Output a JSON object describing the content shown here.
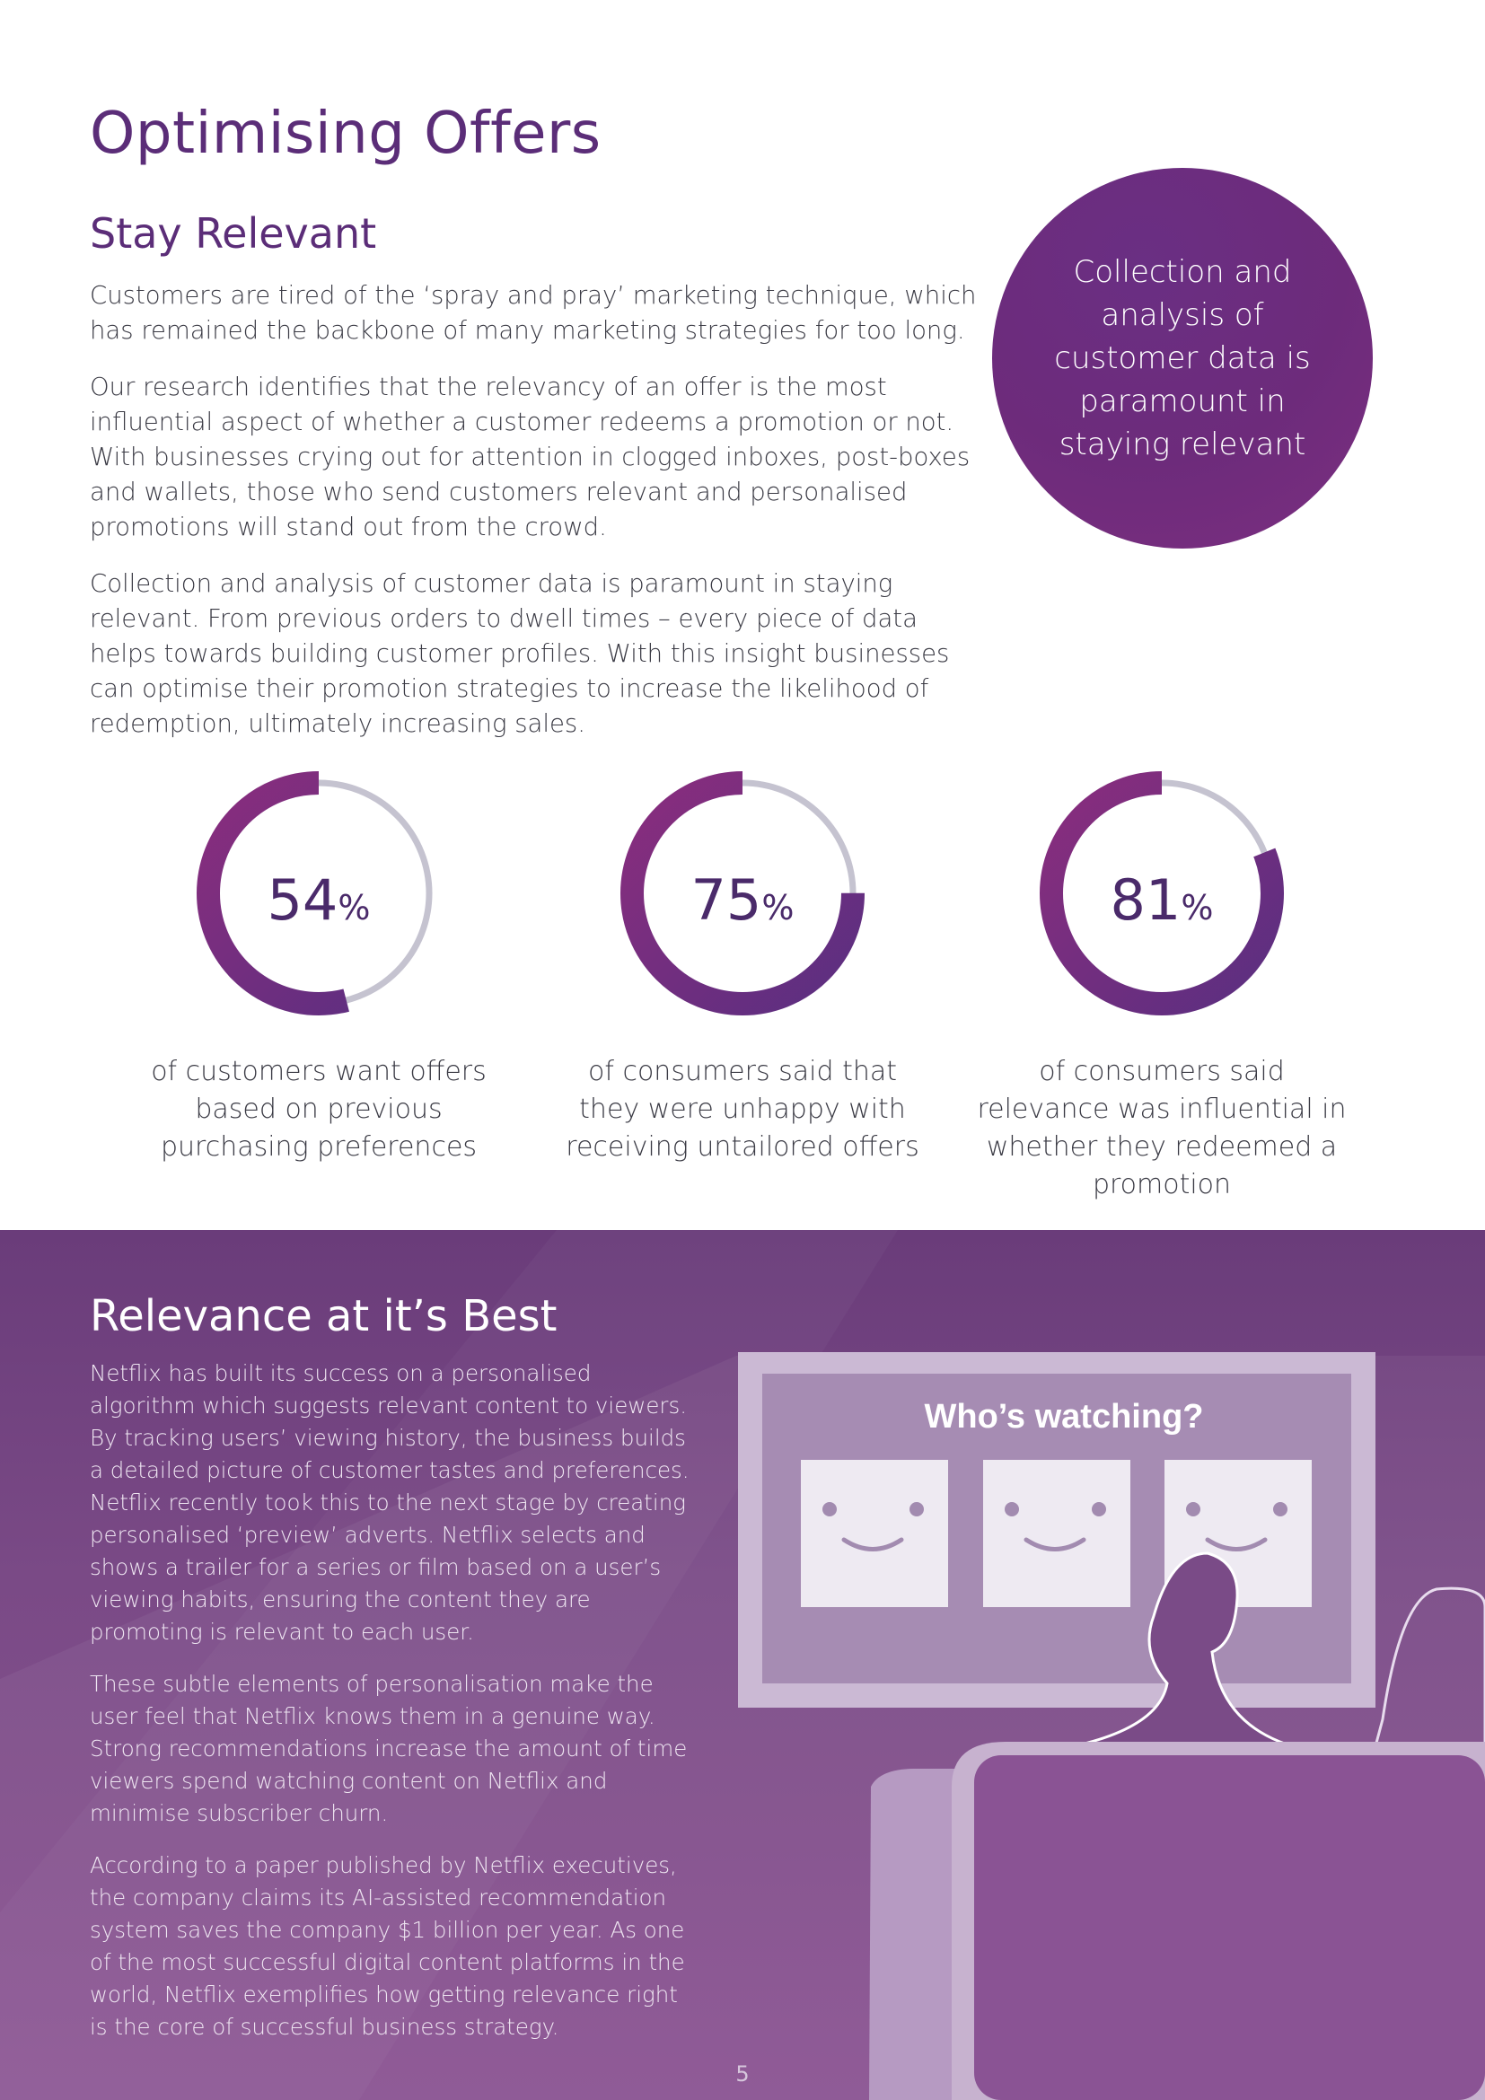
{
  "page": {
    "title": "Optimising Offers",
    "subtitle": "Stay Relevant",
    "number": "5"
  },
  "intro": {
    "paragraphs": [
      "Customers are tired of the ‘spray and pray’ marketing technique, which has remained the backbone of many marketing strategies for too long.",
      "Our research identifies that the relevancy of an offer is the most influential aspect of whether a customer redeems a promotion or not. With businesses crying out for attention in clogged inboxes, post-boxes and wallets, those who send customers relevant and personalised promotions will stand out from the crowd.",
      "Collection and analysis of customer data is paramount in staying relevant. From previous orders to dwell times – every piece of data helps towards building customer profiles. With this insight businesses can optimise their promotion strategies to increase the likelihood of redemption, ultimately increasing sales."
    ]
  },
  "callout": {
    "text": "Collection and analysis of customer data is paramount in staying relevant"
  },
  "stats": [
    {
      "value": "54",
      "unit": "%",
      "fraction": 0.54,
      "caption": "of customers want offers based on previous purchasing preferences"
    },
    {
      "value": "75",
      "unit": "%",
      "fraction": 0.75,
      "caption": "of consumers said that they were unhappy with receiving untailored offers"
    },
    {
      "value": "81",
      "unit": "%",
      "fraction": 0.81,
      "caption": "of consumers said relevance was influential in whether they redeemed a promotion"
    }
  ],
  "colors": {
    "brand_purple": "#5b2d78",
    "ring_track": "#c5c3d0",
    "ring_start": "#5a2f80",
    "ring_end": "#8a2d7e"
  },
  "case_study": {
    "title": "Relevance at it’s Best",
    "paragraphs": [
      "Netflix has built its success on a personalised algorithm which suggests relevant content to viewers. By tracking users’ viewing history, the business builds a detailed picture of customer tastes and preferences. Netflix recently took this to the next stage by creating personalised ‘preview’ adverts. Netflix selects and shows a trailer for a series or film based on a user’s viewing habits, ensuring the content they are promoting is relevant to each user.",
      "These subtle elements of personalisation make the user feel that Netflix knows them in a genuine way. Strong recommendations increase the amount of time viewers spend watching content on Netflix and minimise subscriber churn.",
      "According to a paper published by Netflix executives, the company claims its AI-assisted recommendation system saves the company $1 billion per year. As one of the most successful digital content platforms in the world, Netflix exemplifies how getting relevance right is the core of successful business strategy."
    ]
  },
  "illustration": {
    "screen_heading": "Who’s watching?",
    "icons": [
      "tv-screen-icon",
      "smiley-profile-icon",
      "viewer-silhouette-icon",
      "sofa-icon"
    ]
  }
}
